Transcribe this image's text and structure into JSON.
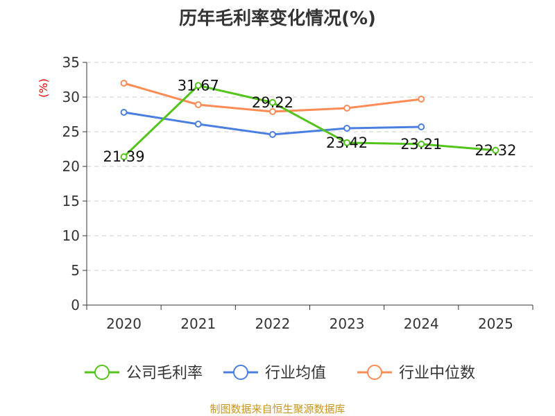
{
  "chart_data": {
    "type": "line",
    "title": "历年毛利率变化情况(%)",
    "ylabel": "(%)",
    "categories": [
      "2020",
      "2021",
      "2022",
      "2023",
      "2024",
      "2025"
    ],
    "ylim": [
      0,
      35
    ],
    "yticks": [
      0,
      5,
      10,
      15,
      20,
      25,
      30,
      35
    ],
    "grid": true,
    "legend_position": "bottom",
    "series": [
      {
        "name": "公司毛利率",
        "color": "#52c41a",
        "values": [
          21.39,
          31.67,
          29.22,
          23.42,
          23.21,
          22.32
        ],
        "labels": [
          "21.39",
          "31.67",
          "29.22",
          "23.42",
          "23.21",
          "22.32"
        ]
      },
      {
        "name": "行业均值",
        "color": "#4a7fe0",
        "values": [
          27.8,
          26.1,
          24.6,
          25.5,
          25.7,
          null
        ]
      },
      {
        "name": "行业中位数",
        "color": "#ff8c55",
        "values": [
          32.0,
          28.9,
          27.9,
          28.4,
          29.7,
          null
        ]
      }
    ]
  },
  "source": "制图数据来自恒生聚源数据库"
}
